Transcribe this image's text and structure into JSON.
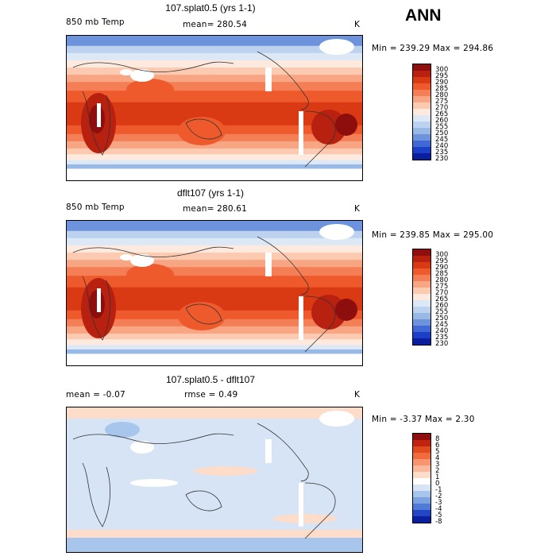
{
  "season": "ANN",
  "chart_data": [
    {
      "type": "heatmap",
      "title": "107.splat0.5 (yrs 1-1)",
      "field": "850 mb Temp",
      "stat_label": "mean=",
      "stat_value": "280.54",
      "units": "K",
      "minmax": "Min = 239.29 Max = 294.86",
      "min": 239.29,
      "max": 294.86,
      "levels": [
        "300",
        "295",
        "290",
        "285",
        "280",
        "275",
        "270",
        "265",
        "260",
        "255",
        "250",
        "245",
        "240",
        "235",
        "230"
      ],
      "colors": [
        "#8e0d0d",
        "#b82010",
        "#d93a14",
        "#ee5a2c",
        "#f47f56",
        "#f8a583",
        "#fbcab0",
        "#fde9dd",
        "#dde8f6",
        "#bcd2ee",
        "#98b8e6",
        "#6d93dc",
        "#4169d6",
        "#1c3fc8",
        "#0a1f9e"
      ]
    },
    {
      "type": "heatmap",
      "title": "dflt107 (yrs 1-1)",
      "field": "850 mb Temp",
      "stat_label": "mean=",
      "stat_value": "280.61",
      "units": "K",
      "minmax": "Min = 239.85 Max = 295.00",
      "min": 239.85,
      "max": 295.0,
      "levels": [
        "300",
        "295",
        "290",
        "285",
        "280",
        "275",
        "270",
        "265",
        "260",
        "255",
        "250",
        "245",
        "240",
        "235",
        "230"
      ],
      "colors": [
        "#8e0d0d",
        "#b82010",
        "#d93a14",
        "#ee5a2c",
        "#f47f56",
        "#f8a583",
        "#fbcab0",
        "#fde9dd",
        "#dde8f6",
        "#bcd2ee",
        "#98b8e6",
        "#6d93dc",
        "#4169d6",
        "#1c3fc8",
        "#0a1f9e"
      ]
    },
    {
      "type": "heatmap",
      "title": "107.splat0.5 - dflt107",
      "stat_label": "mean =",
      "stat_value": "-0.07",
      "rmse_label": "rmse =",
      "rmse_value": "0.49",
      "units": "K",
      "minmax": "Min = -3.37 Max = 2.30",
      "min": -3.37,
      "max": 2.3,
      "levels": [
        "8",
        "6",
        "5",
        "4",
        "3",
        "2",
        "1",
        "0",
        "-1",
        "-2",
        "-3",
        "-4",
        "-5",
        "-8"
      ],
      "colors": [
        "#8e0d0d",
        "#c0240f",
        "#e04a1c",
        "#f06b3e",
        "#f69570",
        "#fab89c",
        "#fddcc9",
        "#ffffff",
        "#d6e4f5",
        "#a8c6ec",
        "#7ba3e0",
        "#4d7bd6",
        "#2347c4",
        "#0a1f9e"
      ]
    }
  ]
}
